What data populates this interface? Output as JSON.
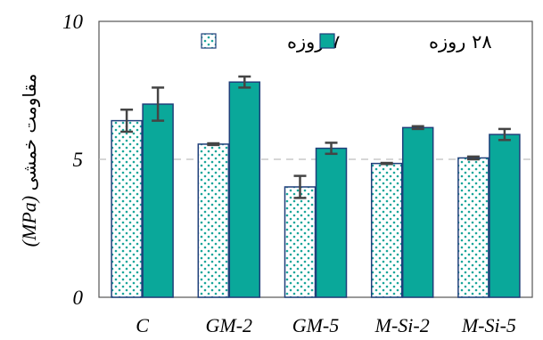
{
  "chart_data": {
    "type": "bar",
    "title": "",
    "xlabel": "",
    "ylabel": "مقاومت خمشی",
    "ylabel_unit": "(MPa)",
    "ylim": [
      0,
      10
    ],
    "yticks": [
      "0",
      "5",
      "10"
    ],
    "reference_line": {
      "y": 5,
      "style": "dashed"
    },
    "categories": [
      "C",
      "GM-2",
      "GM-5",
      "M-Si-2",
      "M-Si-5"
    ],
    "legend_position": "top",
    "series": [
      {
        "name": "۷ روزه",
        "pattern": "dotted",
        "color": "#1aa69a",
        "values": [
          6.4,
          5.55,
          4.0,
          4.85,
          5.05
        ],
        "errors": [
          0.4,
          0.03,
          0.4,
          0.02,
          0.05
        ]
      },
      {
        "name": "۲۸ روزه",
        "pattern": "solid",
        "color": "#0aa89a",
        "values": [
          7.0,
          7.8,
          5.4,
          6.15,
          5.9
        ],
        "errors": [
          0.6,
          0.2,
          0.2,
          0.05,
          0.2
        ]
      }
    ],
    "colors": {
      "edge": "#1f3f7a",
      "error_bar": "#444444",
      "grid": "#bdbdbd"
    }
  }
}
